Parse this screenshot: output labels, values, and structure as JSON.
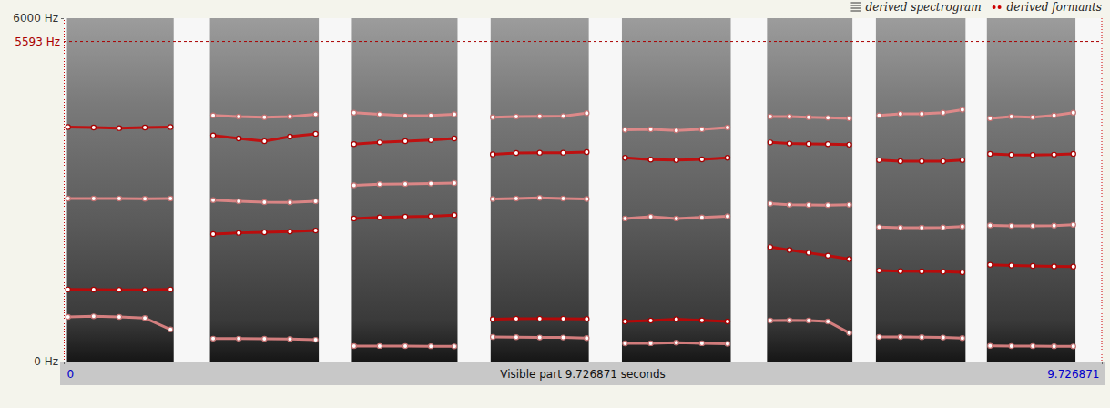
{
  "chart_data": {
    "type": "line",
    "xlabel": "Visible part 9.726871 seconds",
    "xlim": [
      0,
      9.726871
    ],
    "xticks": [
      0,
      9.726871
    ],
    "ylim": [
      0,
      6000
    ],
    "yticks": [
      {
        "value": 0,
        "label": "0 Hz"
      },
      {
        "value": 6000,
        "label": "6000 Hz"
      }
    ],
    "reference_line": {
      "value": 5593,
      "label": "5593 Hz",
      "color": "#aa0000"
    },
    "legend": "top-right",
    "legend_labels": [
      "derived spectrogram",
      "derived formants"
    ],
    "marker": "circle",
    "grid": false,
    "segments": [
      {
        "start": 0.03,
        "end": 1.03
      },
      {
        "start": 1.37,
        "end": 2.39
      },
      {
        "start": 2.7,
        "end": 3.69
      },
      {
        "start": 4.0,
        "end": 4.92
      },
      {
        "start": 5.23,
        "end": 6.25
      },
      {
        "start": 6.59,
        "end": 7.39
      },
      {
        "start": 7.61,
        "end": 8.45
      },
      {
        "start": 8.65,
        "end": 9.48
      }
    ],
    "x": [
      0.04,
      0.28,
      0.52,
      0.76,
      1,
      1.2,
      1.4,
      1.64,
      1.88,
      2.12,
      2.36,
      2.54,
      2.72,
      2.96,
      3.2,
      3.44,
      3.66,
      3.84,
      4.02,
      4.24,
      4.46,
      4.68,
      4.9,
      5.08,
      5.26,
      5.5,
      5.74,
      5.98,
      6.22,
      6.42,
      6.62,
      6.8,
      6.98,
      7.16,
      7.36,
      7.5,
      7.64,
      7.84,
      8.04,
      8.24,
      8.42,
      8.55,
      8.68,
      8.88,
      9.08,
      9.28,
      9.46
    ],
    "series": [
      {
        "color": "#f08c8c",
        "values": [
          780,
          790,
          780,
          760,
          560,
          null,
          400,
          400,
          398,
          395,
          380,
          null,
          270,
          272,
          270,
          268,
          265,
          null,
          430,
          425,
          420,
          420,
          410,
          null,
          318,
          320,
          330,
          320,
          310,
          null,
          716,
          720,
          716,
          700,
          500,
          null,
          430,
          430,
          425,
          420,
          410,
          null,
          275,
          270,
          270,
          268,
          265
        ]
      },
      {
        "color": "#cc0000",
        "values": [
          1260,
          1257,
          1255,
          1255,
          1260,
          null,
          2230,
          2250,
          2260,
          2270,
          2290,
          null,
          2500,
          2520,
          2530,
          2540,
          2560,
          null,
          740,
          748,
          750,
          748,
          745,
          null,
          700,
          716,
          740,
          720,
          700,
          null,
          2000,
          1950,
          1900,
          1850,
          1790,
          null,
          1590,
          1580,
          1575,
          1570,
          1560,
          null,
          1690,
          1680,
          1671,
          1665,
          1660
        ]
      },
      {
        "color": "#f08c8c",
        "values": [
          2850,
          2849,
          2849,
          2845,
          2850,
          null,
          2820,
          2800,
          2785,
          2780,
          2800,
          null,
          3080,
          3100,
          3103,
          3110,
          3120,
          null,
          2840,
          2849,
          2860,
          2850,
          2840,
          null,
          2500,
          2530,
          2500,
          2520,
          2540,
          null,
          2760,
          2740,
          2737,
          2735,
          2740,
          null,
          2350,
          2340,
          2340,
          2345,
          2360,
          null,
          2380,
          2371,
          2370,
          2375,
          2390
        ]
      },
      {
        "color": "#cc0000",
        "values": [
          4100,
          4090,
          4080,
          4090,
          4100,
          null,
          3950,
          3900,
          3850,
          3930,
          3980,
          null,
          3800,
          3830,
          3851,
          3870,
          3900,
          null,
          3620,
          3645,
          3650,
          3650,
          3660,
          null,
          3560,
          3530,
          3520,
          3533,
          3560,
          null,
          3830,
          3810,
          3804,
          3800,
          3790,
          null,
          3520,
          3501,
          3500,
          3500,
          3520,
          null,
          3630,
          3613,
          3610,
          3615,
          3630
        ]
      },
      {
        "color": "#f08c8c",
        "values": [
          null,
          null,
          null,
          null,
          null,
          null,
          4300,
          4280,
          4270,
          4280,
          4320,
          null,
          4350,
          4320,
          4297,
          4300,
          4320,
          null,
          4270,
          4281,
          4285,
          4290,
          4340,
          null,
          4050,
          4058,
          4040,
          4060,
          4090,
          null,
          4280,
          4281,
          4270,
          4260,
          4250,
          null,
          4300,
          4329,
          4330,
          4350,
          4400,
          null,
          4250,
          4281,
          4270,
          4300,
          4350
        ]
      }
    ]
  }
}
